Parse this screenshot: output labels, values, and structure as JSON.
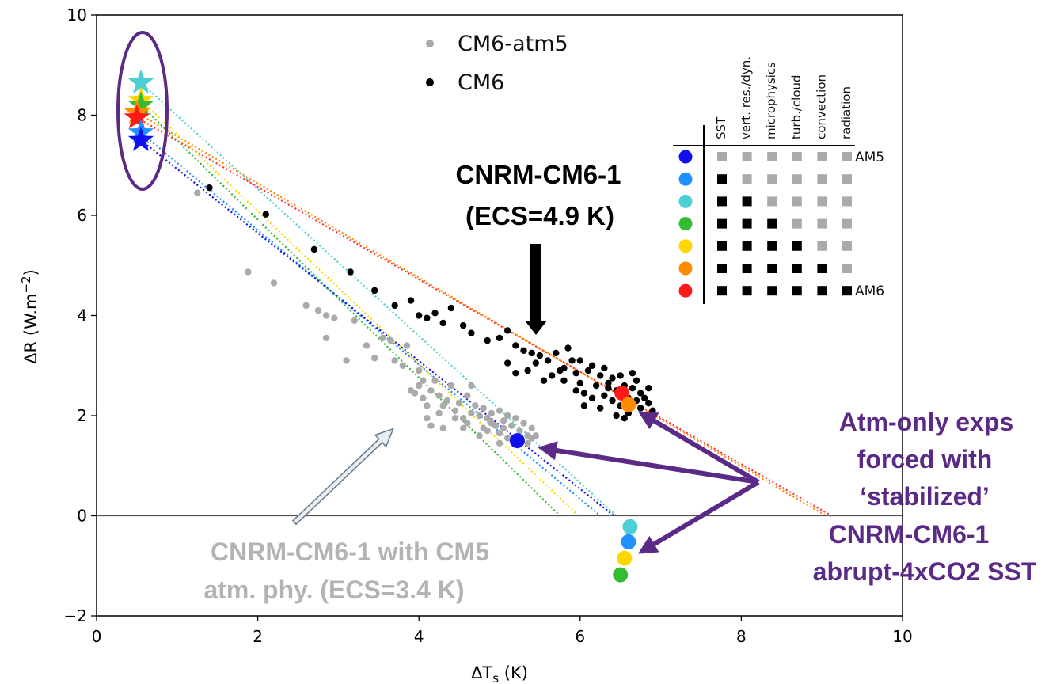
{
  "chart_data": {
    "type": "scatter",
    "xlabel": "ΔT",
    "xlabel_sub": "s",
    "xlabel_unit": " (K)",
    "ylabel": "ΔR (W.m",
    "ylabel_sup": "−2",
    "ylabel_end": ")",
    "xlim": [
      0,
      10
    ],
    "ylim": [
      -2,
      10
    ],
    "x_ticks": [
      0,
      2,
      4,
      6,
      8,
      10
    ],
    "x_tick_labels": [
      "0",
      "2",
      "4",
      "6",
      "8",
      "10"
    ],
    "y_ticks": [
      -2,
      0,
      2,
      4,
      6,
      8,
      10
    ],
    "y_tick_labels": [
      "−2",
      "0",
      "2",
      "4",
      "6",
      "8",
      "10"
    ],
    "grid": false,
    "zero_line": 0,
    "legend": {
      "placement": "top-center",
      "entries": [
        {
          "label": "CM6-atm5",
          "color": "#aaaaaa"
        },
        {
          "label": "CM6",
          "color": "#000000"
        }
      ]
    },
    "series": [
      {
        "name": "CM6-atm5",
        "color": "#aaaaaa",
        "points": [
          [
            1.25,
            6.45
          ],
          [
            1.88,
            4.87
          ],
          [
            2.2,
            4.65
          ],
          [
            2.6,
            4.2
          ],
          [
            2.75,
            4.1
          ],
          [
            2.85,
            4.0
          ],
          [
            2.95,
            3.95
          ],
          [
            2.85,
            3.55
          ],
          [
            3.1,
            3.1
          ],
          [
            3.2,
            3.9
          ],
          [
            3.35,
            3.4
          ],
          [
            3.45,
            3.15
          ],
          [
            3.55,
            3.55
          ],
          [
            3.65,
            3.5
          ],
          [
            3.7,
            3.1
          ],
          [
            3.8,
            3.0
          ],
          [
            3.85,
            3.4
          ],
          [
            3.9,
            2.5
          ],
          [
            3.95,
            2.45
          ],
          [
            4.0,
            2.6
          ],
          [
            4.0,
            2.9
          ],
          [
            4.05,
            2.7
          ],
          [
            4.05,
            2.35
          ],
          [
            4.1,
            2.2
          ],
          [
            4.1,
            1.95
          ],
          [
            4.15,
            2.5
          ],
          [
            4.2,
            2.7
          ],
          [
            4.25,
            2.4
          ],
          [
            4.3,
            2.2
          ],
          [
            4.35,
            2.3
          ],
          [
            4.4,
            2.6
          ],
          [
            4.45,
            2.1
          ],
          [
            4.5,
            2.25
          ],
          [
            4.55,
            1.95
          ],
          [
            4.6,
            2.4
          ],
          [
            4.65,
            2.6
          ],
          [
            4.7,
            2.2
          ],
          [
            4.75,
            2.0
          ],
          [
            4.8,
            1.75
          ],
          [
            4.8,
            2.15
          ],
          [
            4.85,
            1.95
          ],
          [
            4.9,
            2.05
          ],
          [
            4.95,
            1.8
          ],
          [
            5.0,
            2.1
          ],
          [
            5.0,
            1.65
          ],
          [
            5.05,
            1.9
          ],
          [
            5.1,
            2.0
          ],
          [
            5.1,
            1.55
          ],
          [
            5.15,
            1.8
          ],
          [
            5.2,
            1.95
          ],
          [
            5.25,
            1.7
          ],
          [
            5.3,
            1.85
          ],
          [
            5.35,
            1.6
          ],
          [
            5.35,
            1.45
          ],
          [
            5.4,
            1.75
          ],
          [
            5.4,
            1.55
          ],
          [
            5.45,
            1.6
          ],
          [
            4.3,
            1.75
          ],
          [
            4.6,
            1.85
          ],
          [
            4.9,
            1.85
          ],
          [
            4.55,
            1.75
          ],
          [
            4.75,
            1.6
          ],
          [
            5.0,
            1.45
          ],
          [
            5.2,
            1.5
          ],
          [
            4.25,
            2.05
          ],
          [
            4.15,
            1.8
          ],
          [
            4.45,
            1.95
          ],
          [
            4.65,
            2.05
          ],
          [
            4.85,
            1.7
          ],
          [
            5.05,
            1.75
          ]
        ]
      },
      {
        "name": "CM6",
        "color": "#000000",
        "points": [
          [
            1.4,
            6.55
          ],
          [
            2.1,
            6.02
          ],
          [
            2.7,
            5.32
          ],
          [
            3.15,
            4.87
          ],
          [
            3.45,
            4.5
          ],
          [
            3.7,
            4.2
          ],
          [
            3.9,
            4.3
          ],
          [
            4.0,
            4.0
          ],
          [
            4.1,
            3.95
          ],
          [
            4.2,
            4.05
          ],
          [
            4.3,
            3.85
          ],
          [
            4.4,
            4.15
          ],
          [
            4.55,
            3.8
          ],
          [
            4.65,
            3.65
          ],
          [
            4.85,
            3.5
          ],
          [
            5.0,
            3.55
          ],
          [
            5.1,
            3.7
          ],
          [
            5.2,
            3.4
          ],
          [
            5.3,
            3.3
          ],
          [
            5.4,
            3.25
          ],
          [
            5.5,
            3.2
          ],
          [
            5.1,
            3.05
          ],
          [
            5.2,
            2.85
          ],
          [
            5.35,
            2.9
          ],
          [
            5.45,
            3.05
          ],
          [
            5.55,
            2.7
          ],
          [
            5.6,
            3.1
          ],
          [
            5.7,
            3.25
          ],
          [
            5.75,
            2.9
          ],
          [
            5.8,
            2.7
          ],
          [
            5.85,
            3.35
          ],
          [
            5.9,
            3.1
          ],
          [
            5.95,
            2.85
          ],
          [
            6.0,
            2.65
          ],
          [
            6.0,
            3.1
          ],
          [
            6.05,
            2.45
          ],
          [
            6.1,
            2.9
          ],
          [
            6.15,
            3.0
          ],
          [
            6.2,
            2.6
          ],
          [
            6.25,
            2.8
          ],
          [
            6.3,
            2.4
          ],
          [
            6.3,
            2.95
          ],
          [
            6.35,
            2.65
          ],
          [
            6.4,
            2.3
          ],
          [
            6.4,
            2.75
          ],
          [
            6.45,
            2.5
          ],
          [
            6.5,
            2.2
          ],
          [
            6.5,
            2.8
          ],
          [
            6.55,
            2.6
          ],
          [
            6.6,
            2.35
          ],
          [
            6.6,
            2.05
          ],
          [
            6.65,
            2.55
          ],
          [
            6.7,
            2.3
          ],
          [
            6.7,
            2.7
          ],
          [
            6.75,
            2.15
          ],
          [
            6.75,
            2.45
          ],
          [
            6.8,
            2.35
          ],
          [
            6.85,
            2.55
          ],
          [
            6.85,
            2.25
          ],
          [
            6.9,
            2.1
          ],
          [
            5.95,
            2.5
          ],
          [
            6.15,
            2.35
          ],
          [
            6.25,
            2.15
          ],
          [
            6.45,
            2.0
          ],
          [
            6.55,
            1.95
          ],
          [
            6.05,
            2.2
          ],
          [
            5.8,
            2.95
          ],
          [
            5.65,
            2.8
          ],
          [
            6.35,
            2.55
          ],
          [
            6.65,
            2.85
          ]
        ]
      }
    ],
    "star_points": [
      {
        "x": 0.55,
        "y": 8.65,
        "color": "#4dd0d3"
      },
      {
        "x": 0.55,
        "y": 8.3,
        "color": "#ffd700"
      },
      {
        "x": 0.55,
        "y": 8.2,
        "color": "#33bb33"
      },
      {
        "x": 0.5,
        "y": 8.05,
        "color": "#ff8c00"
      },
      {
        "x": 0.5,
        "y": 7.95,
        "color": "#ff1a1a"
      },
      {
        "x": 0.55,
        "y": 7.65,
        "color": "#1e90ff"
      },
      {
        "x": 0.55,
        "y": 7.5,
        "color": "#1010ee"
      }
    ],
    "circle_points": [
      {
        "x": 5.22,
        "y": 1.5,
        "color": "#1010ee"
      },
      {
        "x": 6.52,
        "y": 2.45,
        "color": "#ff1a1a"
      },
      {
        "x": 6.6,
        "y": 2.22,
        "color": "#ff8c00"
      },
      {
        "x": 6.62,
        "y": -0.22,
        "color": "#4dd0d3"
      },
      {
        "x": 6.6,
        "y": -0.52,
        "color": "#1e90ff"
      },
      {
        "x": 6.55,
        "y": -0.85,
        "color": "#ffd700"
      },
      {
        "x": 6.5,
        "y": -1.18,
        "color": "#33bb33"
      }
    ],
    "regression_lines": [
      {
        "color": "#ff3333",
        "x0": 0.5,
        "y0": 7.95,
        "x1": 9.12,
        "y1": 0
      },
      {
        "color": "#ff8c00",
        "x0": 0.5,
        "y0": 8.05,
        "x1": 9.05,
        "y1": 0
      },
      {
        "color": "#4dd0d3",
        "x0": 0.55,
        "y0": 8.65,
        "x1": 6.45,
        "y1": 0
      },
      {
        "color": "#1e90ff",
        "x0": 0.55,
        "y0": 7.65,
        "x1": 6.25,
        "y1": 0
      },
      {
        "color": "#1010ee",
        "x0": 0.55,
        "y0": 7.5,
        "x1": 6.42,
        "y1": 0
      },
      {
        "color": "#ffd700",
        "x0": 0.55,
        "y0": 8.3,
        "x1": 5.98,
        "y1": 0
      },
      {
        "color": "#33bb33",
        "x0": 0.55,
        "y0": 8.2,
        "x1": 5.75,
        "y1": 0
      }
    ],
    "config_table": {
      "columns": [
        "SST",
        "vert. res./dyn.",
        "microphysics",
        "turb./cloud",
        "convection",
        "radiation"
      ],
      "rows": [
        {
          "color": "#1010ee",
          "label": "AM5",
          "cells": [
            0,
            0,
            0,
            0,
            0,
            0
          ]
        },
        {
          "color": "#1e90ff",
          "label": "",
          "cells": [
            1,
            0,
            0,
            0,
            0,
            0
          ]
        },
        {
          "color": "#4dd0d3",
          "label": "",
          "cells": [
            1,
            1,
            0,
            0,
            0,
            0
          ]
        },
        {
          "color": "#33bb33",
          "label": "",
          "cells": [
            1,
            1,
            1,
            0,
            0,
            0
          ]
        },
        {
          "color": "#ffd700",
          "label": "",
          "cells": [
            1,
            1,
            1,
            1,
            0,
            0
          ]
        },
        {
          "color": "#ff8c00",
          "label": "",
          "cells": [
            1,
            1,
            1,
            1,
            1,
            0
          ]
        },
        {
          "color": "#ff1a1a",
          "label": "AM6",
          "cells": [
            1,
            1,
            1,
            1,
            1,
            1
          ]
        }
      ]
    },
    "annotations": {
      "cm6_title": [
        "CNRM-CM6-1",
        "(ECS=4.9 K)"
      ],
      "cm5_title": [
        "CNRM-CM6-1 with CM5",
        "atm. phy. (ECS=3.4 K)"
      ],
      "atm_only": [
        "Atm-only exps",
        "forced with",
        "‘stabilized’",
        "CNRM-CM6-1",
        "abrupt-4xCO2 SST"
      ],
      "colors": {
        "black": "#000000",
        "gray": "#b3b3b3",
        "purple": "#5b2a86"
      }
    }
  }
}
